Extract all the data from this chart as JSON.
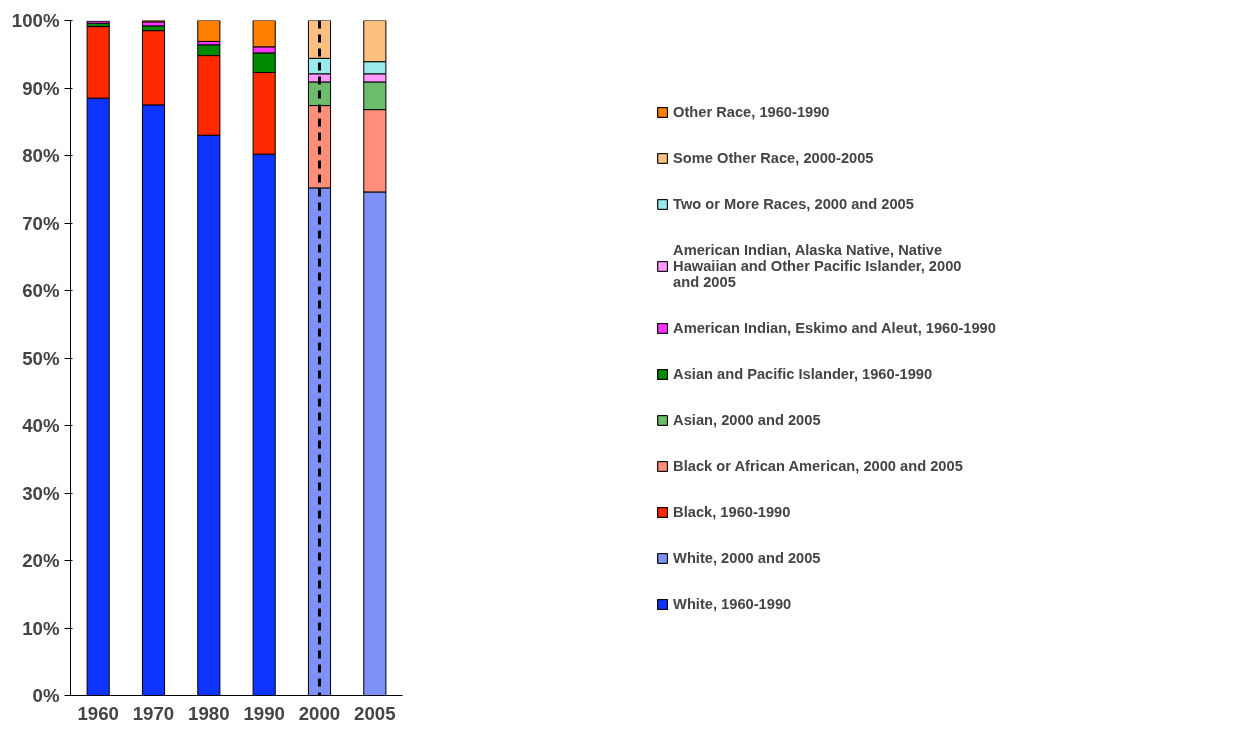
{
  "chart_data": {
    "type": "bar",
    "stacked": true,
    "categories": [
      "1960",
      "1970",
      "1980",
      "1990",
      "2000",
      "2005"
    ],
    "series": [
      {
        "name": "White, 1960-1990",
        "color": "#0f34ff",
        "values": [
          88.5,
          87.5,
          83.0,
          80.2,
          null,
          null
        ]
      },
      {
        "name": "White, 2000 and 2005",
        "color": "#7d91f7",
        "values": [
          null,
          null,
          null,
          null,
          75.2,
          74.6
        ]
      },
      {
        "name": "Black, 1960-1990",
        "color": "#ff2a00",
        "values": [
          10.6,
          11.0,
          11.8,
          12.1,
          null,
          null
        ]
      },
      {
        "name": "Black or African American, 2000 and 2005",
        "color": "#ff8f78",
        "values": [
          null,
          null,
          null,
          null,
          12.2,
          12.2
        ]
      },
      {
        "name": "Asian, 2000 and 2005",
        "color": "#6cbc6c",
        "values": [
          null,
          null,
          null,
          null,
          3.5,
          4.1
        ]
      },
      {
        "name": "Asian and Pacific Islander, 1960-1990",
        "color": "#008a00",
        "values": [
          0.5,
          0.7,
          1.6,
          2.9,
          null,
          null
        ]
      },
      {
        "name": "American Indian, Eskimo and Aleut, 1960-1990",
        "color": "#ff33ff",
        "values": [
          0.3,
          0.6,
          0.5,
          0.9,
          null,
          null
        ]
      },
      {
        "name": "American Indian, Alaska Native, Native Hawaiian and Other Pacific Islander, 2000 and 2005",
        "color": "#ff99ff",
        "values": [
          null,
          null,
          null,
          null,
          1.2,
          1.2
        ]
      },
      {
        "name": "Two or More Races, 2000 and 2005",
        "color": "#99eaea",
        "values": [
          null,
          null,
          null,
          null,
          2.3,
          1.8
        ]
      },
      {
        "name": "Some Other Race, 2000-2005",
        "color": "#ffbf80",
        "values": [
          null,
          null,
          null,
          null,
          5.6,
          6.1
        ]
      },
      {
        "name": "Other Race, 1960-1990",
        "color": "#ff8000",
        "values": [
          null,
          0.2,
          3.1,
          3.9,
          null,
          null
        ]
      }
    ],
    "ylim": [
      0,
      100
    ],
    "yticks": [
      {
        "value": 0,
        "label": "0%"
      },
      {
        "value": 10,
        "label": "10%"
      },
      {
        "value": 20,
        "label": "20%"
      },
      {
        "value": 30,
        "label": "30%"
      },
      {
        "value": 40,
        "label": "40%"
      },
      {
        "value": 50,
        "label": "50%"
      },
      {
        "value": 60,
        "label": "60%"
      },
      {
        "value": 70,
        "label": "70%"
      },
      {
        "value": 80,
        "label": "80%"
      },
      {
        "value": 90,
        "label": "90%"
      },
      {
        "value": 100,
        "label": "100%"
      }
    ],
    "ref_lines": [
      {
        "axis": "x",
        "value": "2000",
        "color": "#000000",
        "line_style": "dashed"
      }
    ],
    "grid": false,
    "legend": "right"
  }
}
